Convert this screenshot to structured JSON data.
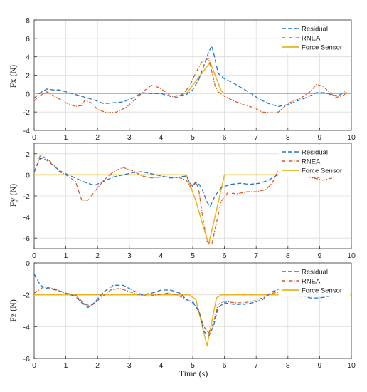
{
  "colors": {
    "residual": "#1f77d4",
    "rnea": "#d9541a",
    "force_sensor": "#e8b51e",
    "grid": "#dcdcdc",
    "axis": "#333333",
    "background": "#ffffff"
  },
  "chart_data": [
    {
      "type": "line",
      "ylabel": "Fx (N)",
      "xlabel": "",
      "xlim": [
        0,
        10
      ],
      "ylim": [
        -4,
        8
      ],
      "xticks": [
        0,
        1,
        2,
        3,
        4,
        5,
        6,
        7,
        8,
        9,
        10
      ],
      "yticks": [
        -4,
        -2,
        0,
        2,
        4,
        6,
        8
      ],
      "grid": true,
      "legend_position": "top-right",
      "series": [
        {
          "name": "Residual",
          "key": "residual",
          "x": [
            0,
            0.2,
            0.4,
            0.6,
            0.8,
            1.0,
            1.3,
            1.6,
            1.9,
            2.2,
            2.5,
            2.8,
            3.1,
            3.4,
            3.7,
            4.0,
            4.3,
            4.6,
            4.8,
            5.0,
            5.2,
            5.4,
            5.5,
            5.6,
            5.7,
            5.8,
            6.0,
            6.2,
            6.5,
            6.8,
            7.1,
            7.4,
            7.7,
            8.0,
            8.3,
            8.6,
            8.9,
            9.2,
            9.4,
            9.6,
            9.8
          ],
          "y": [
            -0.5,
            0.1,
            0.5,
            0.4,
            0.4,
            0.2,
            -0.1,
            -0.4,
            -0.7,
            -1.1,
            -1.0,
            -0.9,
            -0.5,
            0.1,
            0.0,
            0.0,
            -0.3,
            -0.2,
            -0.1,
            0.4,
            1.6,
            3.5,
            4.5,
            5.2,
            3.8,
            2.2,
            1.6,
            1.3,
            0.7,
            0.1,
            -0.6,
            -1.1,
            -1.4,
            -1.2,
            -0.8,
            -0.4,
            0.1,
            0.1,
            -0.2,
            -0.2,
            0.2
          ]
        },
        {
          "name": "RNEA",
          "key": "rnea",
          "x": [
            0,
            0.2,
            0.4,
            0.6,
            0.8,
            1.0,
            1.3,
            1.5,
            1.6,
            1.8,
            2.0,
            2.3,
            2.6,
            2.9,
            3.2,
            3.5,
            3.7,
            3.9,
            4.1,
            4.3,
            4.5,
            4.7,
            4.9,
            5.1,
            5.3,
            5.5,
            5.6,
            5.7,
            5.8,
            6.0,
            6.3,
            6.6,
            6.9,
            7.2,
            7.5,
            7.7,
            7.9,
            8.1,
            8.4,
            8.7,
            8.9,
            9.1,
            9.3,
            9.5,
            9.7,
            9.9
          ],
          "y": [
            -0.8,
            -0.2,
            0.2,
            -0.2,
            -0.6,
            -1.0,
            -1.4,
            -1.3,
            -0.7,
            -1.0,
            -1.7,
            -2.1,
            -2.0,
            -1.5,
            -0.6,
            0.4,
            0.9,
            0.7,
            0.3,
            -0.3,
            -0.4,
            0.0,
            0.8,
            2.3,
            3.5,
            3.8,
            2.4,
            0.9,
            0.2,
            -0.3,
            -0.8,
            -1.2,
            -1.5,
            -2.0,
            -2.1,
            -2.0,
            -1.4,
            -0.9,
            -0.5,
            0.2,
            1.0,
            0.8,
            0.2,
            -0.4,
            -0.3,
            0.2
          ]
        },
        {
          "name": "Force Sensor",
          "key": "force_sensor",
          "x": [
            0,
            4.8,
            5.2,
            5.55,
            5.9,
            6.0,
            10
          ],
          "y": [
            0,
            0,
            1.8,
            3.4,
            0.3,
            0,
            0
          ]
        }
      ]
    },
    {
      "type": "line",
      "ylabel": "Fy (N)",
      "xlabel": "",
      "xlim": [
        0,
        10
      ],
      "ylim": [
        -7,
        3
      ],
      "xticks": [
        0,
        1,
        2,
        3,
        4,
        5,
        6,
        7,
        8,
        9,
        10
      ],
      "yticks": [
        -6,
        -4,
        -2,
        0,
        2
      ],
      "grid": true,
      "legend_position": "top-right",
      "series": [
        {
          "name": "Residual",
          "key": "residual",
          "x": [
            0,
            0.2,
            0.4,
            0.6,
            0.8,
            1.0,
            1.3,
            1.6,
            1.9,
            2.2,
            2.5,
            2.8,
            3.1,
            3.4,
            3.7,
            4.0,
            4.3,
            4.6,
            4.8,
            4.9,
            5.0,
            5.1,
            5.2,
            5.3,
            5.45,
            5.55,
            5.7,
            5.9,
            6.2,
            6.5,
            6.8,
            7.1,
            7.4,
            7.6,
            7.8,
            8.0,
            8.3,
            8.6,
            8.9,
            9.2,
            9.5,
            9.8
          ],
          "y": [
            0.3,
            1.6,
            1.4,
            0.9,
            0.4,
            0.1,
            -0.3,
            -0.7,
            -1.0,
            -0.6,
            -0.2,
            0.0,
            0.2,
            0.3,
            0.1,
            -0.1,
            -0.3,
            -0.2,
            -0.1,
            -0.7,
            -1.1,
            -0.7,
            -0.9,
            -1.4,
            -2.6,
            -3.0,
            -2.0,
            -1.2,
            -0.9,
            -0.8,
            -0.9,
            -0.8,
            -0.5,
            -0.1,
            0.1,
            0.0,
            0.1,
            -0.1,
            -0.3,
            0.0,
            0.1,
            0.0
          ]
        },
        {
          "name": "RNEA",
          "key": "rnea",
          "x": [
            0,
            0.2,
            0.5,
            0.8,
            1.0,
            1.3,
            1.5,
            1.7,
            1.9,
            2.2,
            2.5,
            2.8,
            3.1,
            3.4,
            3.7,
            4.0,
            4.3,
            4.6,
            4.8,
            4.95,
            5.1,
            5.2,
            5.3,
            5.45,
            5.6,
            5.75,
            5.9,
            6.1,
            6.4,
            6.7,
            7.0,
            7.3,
            7.5,
            7.7,
            7.9,
            8.2,
            8.5,
            8.8,
            9.1,
            9.4,
            9.7,
            9.9
          ],
          "y": [
            0.2,
            1.9,
            1.3,
            0.3,
            0.0,
            -0.6,
            -2.4,
            -2.4,
            -1.6,
            -0.5,
            0.3,
            0.7,
            0.4,
            -0.1,
            -0.3,
            -0.2,
            -0.2,
            -0.3,
            -0.5,
            -1.3,
            -0.6,
            -1.6,
            -3.8,
            -6.3,
            -6.6,
            -4.5,
            -2.5,
            -1.7,
            -1.8,
            -1.6,
            -1.6,
            -1.4,
            -0.8,
            0.4,
            0.2,
            0.0,
            -0.1,
            -0.3,
            -0.5,
            -0.3,
            0.0,
            0.1
          ]
        },
        {
          "name": "Force Sensor",
          "key": "force_sensor",
          "x": [
            0,
            4.8,
            5.1,
            5.5,
            5.85,
            6.0,
            10
          ],
          "y": [
            0,
            0,
            -2.5,
            -6.6,
            -2.0,
            0,
            0
          ]
        }
      ]
    },
    {
      "type": "line",
      "ylabel": "Fz (N)",
      "xlabel": "Time (s)",
      "xlim": [
        0,
        10
      ],
      "ylim": [
        -6,
        0
      ],
      "xticks": [
        0,
        1,
        2,
        3,
        4,
        5,
        6,
        7,
        8,
        9,
        10
      ],
      "yticks": [
        -6,
        -4,
        -2,
        0
      ],
      "grid": true,
      "legend_position": "top-right",
      "series": [
        {
          "name": "Residual",
          "key": "residual",
          "x": [
            0,
            0.2,
            0.4,
            0.7,
            1.0,
            1.3,
            1.5,
            1.7,
            1.9,
            2.2,
            2.5,
            2.8,
            3.1,
            3.4,
            3.7,
            4.0,
            4.3,
            4.6,
            4.8,
            5.0,
            5.2,
            5.35,
            5.5,
            5.65,
            5.8,
            6.0,
            6.3,
            6.6,
            6.9,
            7.2,
            7.5,
            7.8,
            8.1,
            8.4,
            8.7,
            9.0,
            9.3,
            9.6,
            9.8
          ],
          "y": [
            -0.7,
            -1.4,
            -1.6,
            -1.7,
            -1.9,
            -2.1,
            -2.5,
            -2.8,
            -2.5,
            -1.8,
            -1.4,
            -1.4,
            -1.7,
            -2.0,
            -1.9,
            -1.7,
            -1.7,
            -1.9,
            -2.3,
            -2.5,
            -3.0,
            -4.3,
            -4.6,
            -4.0,
            -2.8,
            -2.5,
            -2.6,
            -2.6,
            -2.5,
            -2.3,
            -1.8,
            -1.6,
            -1.9,
            -2.0,
            -2.2,
            -2.2,
            -2.1,
            -1.8,
            -1.7
          ]
        },
        {
          "name": "RNEA",
          "key": "rnea",
          "x": [
            0,
            0.3,
            0.6,
            1.0,
            1.3,
            1.6,
            1.8,
            2.1,
            2.4,
            2.7,
            3.0,
            3.3,
            3.6,
            3.9,
            4.2,
            4.5,
            4.8,
            5.0,
            5.2,
            5.35,
            5.5,
            5.65,
            5.8,
            6.0,
            6.3,
            6.6,
            6.9,
            7.2,
            7.5,
            7.8,
            8.1,
            8.4,
            8.7,
            9.0,
            9.3,
            9.6,
            9.8
          ],
          "y": [
            -1.9,
            -1.5,
            -1.6,
            -1.9,
            -2.0,
            -2.6,
            -2.7,
            -2.2,
            -1.7,
            -1.6,
            -1.8,
            -2.0,
            -2.1,
            -2.0,
            -1.9,
            -2.0,
            -2.3,
            -2.4,
            -3.1,
            -4.0,
            -4.4,
            -3.8,
            -2.6,
            -2.4,
            -2.5,
            -2.5,
            -2.4,
            -2.2,
            -1.9,
            -1.8,
            -2.0,
            -2.1,
            -2.0,
            -2.1,
            -2.0,
            -1.9,
            -1.8
          ]
        },
        {
          "name": "Force Sensor",
          "key": "force_sensor",
          "x": [
            0,
            4.9,
            5.1,
            5.45,
            5.75,
            5.9,
            10
          ],
          "y": [
            -2,
            -2,
            -2.3,
            -5.2,
            -2.2,
            -2,
            -2
          ]
        }
      ]
    }
  ]
}
